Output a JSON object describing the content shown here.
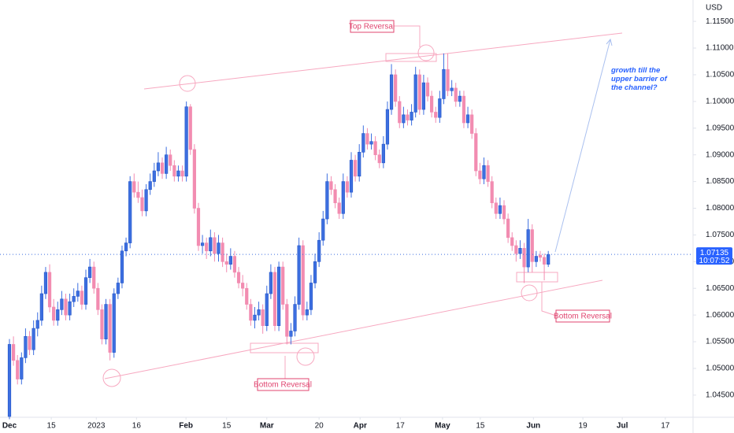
{
  "chart_data": {
    "type": "candlestick",
    "currency": "USD",
    "up_color": "#3d6fe0",
    "down_color": "#f28cb1",
    "last_price": 1.07135,
    "countdown": "10:07:52",
    "annotations": [
      "Top Reversal",
      "Bottom Reversal",
      "Bottom Reversal",
      "growth till the upper barrier of the channel?"
    ],
    "xlim": [
      -2.35,
      170
    ],
    "xticks": [
      {
        "value": 0,
        "label": "Dec"
      },
      {
        "value": 10.4,
        "label": "15"
      },
      {
        "value": 21.6,
        "label": "2023"
      },
      {
        "value": 31.6,
        "label": "16"
      },
      {
        "value": 43.9,
        "label": "Feb"
      },
      {
        "value": 54,
        "label": "15"
      },
      {
        "value": 64,
        "label": "Mar"
      },
      {
        "value": 77,
        "label": "20"
      },
      {
        "value": 87.2,
        "label": "Apr"
      },
      {
        "value": 97.2,
        "label": "17"
      },
      {
        "value": 107.7,
        "label": "May"
      },
      {
        "value": 117.1,
        "label": "15"
      },
      {
        "value": 130.3,
        "label": "Jun"
      },
      {
        "value": 142.6,
        "label": "19"
      },
      {
        "value": 152.4,
        "label": "Jul"
      },
      {
        "value": 163.1,
        "label": "17"
      }
    ],
    "ylim": [
      1.041,
      1.119
    ],
    "yticks": [
      {
        "value": 1.045,
        "label": "1.04500"
      },
      {
        "value": 1.05,
        "label": "1.05000"
      },
      {
        "value": 1.055,
        "label": "1.05500"
      },
      {
        "value": 1.06,
        "label": "1.06000"
      },
      {
        "value": 1.065,
        "label": "1.06500"
      },
      {
        "value": 1.07,
        "label": "1.07000"
      },
      {
        "value": 1.075,
        "label": "1.07500"
      },
      {
        "value": 1.08,
        "label": "1.08000"
      },
      {
        "value": 1.085,
        "label": "1.08500"
      },
      {
        "value": 1.09,
        "label": "1.09000"
      },
      {
        "value": 1.095,
        "label": "1.09500"
      },
      {
        "value": 1.1,
        "label": "1.10000"
      },
      {
        "value": 1.105,
        "label": "1.10500"
      },
      {
        "value": 1.11,
        "label": "1.11000"
      },
      {
        "value": 1.115,
        "label": "1.11500"
      }
    ],
    "candles": [
      [
        1.041,
        1.0555,
        1.0405,
        1.0545
      ],
      [
        1.0545,
        1.056,
        1.0505,
        1.0515
      ],
      [
        1.0515,
        1.0525,
        1.047,
        1.048
      ],
      [
        1.048,
        1.053,
        1.047,
        1.052
      ],
      [
        1.052,
        1.0575,
        1.051,
        1.056
      ],
      [
        1.056,
        1.057,
        1.0525,
        1.0535
      ],
      [
        1.0535,
        1.059,
        1.0525,
        1.0575
      ],
      [
        1.0575,
        1.0605,
        1.056,
        1.059
      ],
      [
        1.059,
        1.0655,
        1.058,
        1.064
      ],
      [
        1.064,
        1.069,
        1.063,
        1.068
      ],
      [
        1.068,
        1.0695,
        1.0605,
        1.0615
      ],
      [
        1.0615,
        1.063,
        1.058,
        1.059
      ],
      [
        1.059,
        1.0625,
        1.058,
        1.061
      ],
      [
        1.061,
        1.0645,
        1.06,
        1.063
      ],
      [
        1.063,
        1.064,
        1.059,
        1.06
      ],
      [
        1.06,
        1.064,
        1.059,
        1.0625
      ],
      [
        1.0625,
        1.065,
        1.0615,
        1.0635
      ],
      [
        1.0635,
        1.066,
        1.0625,
        1.0645
      ],
      [
        1.0645,
        1.0655,
        1.061,
        1.062
      ],
      [
        1.062,
        1.0685,
        1.061,
        1.067
      ],
      [
        1.067,
        1.0705,
        1.066,
        1.069
      ],
      [
        1.069,
        1.07,
        1.064,
        1.065
      ],
      [
        1.065,
        1.066,
        1.06,
        1.061
      ],
      [
        1.061,
        1.062,
        1.0545,
        1.0555
      ],
      [
        1.0555,
        1.063,
        1.0545,
        1.062
      ],
      [
        1.062,
        1.063,
        1.0515,
        1.053
      ],
      [
        1.053,
        1.065,
        1.052,
        1.064
      ],
      [
        1.064,
        1.067,
        1.063,
        1.066
      ],
      [
        1.066,
        1.073,
        1.065,
        1.072
      ],
      [
        1.072,
        1.0745,
        1.071,
        1.0735
      ],
      [
        1.0735,
        1.086,
        1.0725,
        1.085
      ],
      [
        1.085,
        1.0865,
        1.082,
        1.083
      ],
      [
        1.083,
        1.085,
        1.081,
        1.082
      ],
      [
        1.082,
        1.0835,
        1.0785,
        1.0795
      ],
      [
        1.0795,
        1.0845,
        1.0785,
        1.0835
      ],
      [
        1.0835,
        1.0865,
        1.0825,
        1.085
      ],
      [
        1.085,
        1.0885,
        1.084,
        1.087
      ],
      [
        1.087,
        1.0905,
        1.086,
        1.0885
      ],
      [
        1.0885,
        1.0895,
        1.0855,
        1.0865
      ],
      [
        1.0865,
        1.0915,
        1.0855,
        1.09
      ],
      [
        1.09,
        1.091,
        1.087,
        1.088
      ],
      [
        1.088,
        1.089,
        1.085,
        1.086
      ],
      [
        1.086,
        1.088,
        1.085,
        1.087
      ],
      [
        1.087,
        1.088,
        1.085,
        1.086
      ],
      [
        1.086,
        1.1,
        1.085,
        1.099
      ],
      [
        1.099,
        1.0995,
        1.09,
        1.091
      ],
      [
        1.091,
        1.092,
        1.079,
        1.08
      ],
      [
        1.08,
        1.081,
        1.072,
        1.073
      ],
      [
        1.073,
        1.075,
        1.0715,
        1.0735
      ],
      [
        1.0735,
        1.0745,
        1.0705,
        1.072
      ],
      [
        1.072,
        1.076,
        1.071,
        1.0745
      ],
      [
        1.0745,
        1.0755,
        1.07,
        1.0715
      ],
      [
        1.0715,
        1.075,
        1.07,
        1.0735
      ],
      [
        1.0735,
        1.0745,
        1.069,
        1.07
      ],
      [
        1.07,
        1.0715,
        1.068,
        1.0695
      ],
      [
        1.0695,
        1.0725,
        1.0685,
        1.071
      ],
      [
        1.071,
        1.072,
        1.067,
        1.068
      ],
      [
        1.068,
        1.069,
        1.065,
        1.066
      ],
      [
        1.066,
        1.0675,
        1.0635,
        1.065
      ],
      [
        1.065,
        1.066,
        1.061,
        1.062
      ],
      [
        1.062,
        1.063,
        1.058,
        1.059
      ],
      [
        1.059,
        1.0615,
        1.0575,
        1.06
      ],
      [
        1.06,
        1.0625,
        1.059,
        1.061
      ],
      [
        1.061,
        1.062,
        1.0565,
        1.058
      ],
      [
        1.058,
        1.0655,
        1.057,
        1.064
      ],
      [
        1.064,
        1.0695,
        1.063,
        1.068
      ],
      [
        1.068,
        1.069,
        1.057,
        1.058
      ],
      [
        1.058,
        1.07,
        1.057,
        1.069
      ],
      [
        1.069,
        1.07,
        1.061,
        1.062
      ],
      [
        1.062,
        1.063,
        1.0545,
        1.056
      ],
      [
        1.056,
        1.0585,
        1.0545,
        1.057
      ],
      [
        1.057,
        1.0635,
        1.056,
        1.062
      ],
      [
        1.062,
        1.0745,
        1.061,
        1.073
      ],
      [
        1.073,
        1.074,
        1.059,
        1.06
      ],
      [
        1.06,
        1.0625,
        1.059,
        1.061
      ],
      [
        1.061,
        1.0675,
        1.06,
        1.066
      ],
      [
        1.066,
        1.0715,
        1.065,
        1.07
      ],
      [
        1.07,
        1.0755,
        1.069,
        1.074
      ],
      [
        1.074,
        1.0795,
        1.073,
        1.078
      ],
      [
        1.078,
        1.0865,
        1.077,
        1.085
      ],
      [
        1.085,
        1.086,
        1.0825,
        1.0835
      ],
      [
        1.0835,
        1.0845,
        1.08,
        1.081
      ],
      [
        1.081,
        1.082,
        1.078,
        1.079
      ],
      [
        1.079,
        1.0865,
        1.078,
        1.085
      ],
      [
        1.085,
        1.086,
        1.082,
        1.083
      ],
      [
        1.083,
        1.0905,
        1.082,
        1.089
      ],
      [
        1.089,
        1.09,
        1.085,
        1.086
      ],
      [
        1.086,
        1.092,
        1.085,
        1.0905
      ],
      [
        1.0905,
        1.0955,
        1.0895,
        1.094
      ],
      [
        1.094,
        1.095,
        1.091,
        1.092
      ],
      [
        1.092,
        1.094,
        1.091,
        1.0925
      ],
      [
        1.0925,
        1.0935,
        1.089,
        1.09
      ],
      [
        1.09,
        1.091,
        1.0875,
        1.0885
      ],
      [
        1.0885,
        1.0935,
        1.0875,
        1.092
      ],
      [
        1.092,
        1.1,
        1.091,
        1.0985
      ],
      [
        1.0985,
        1.107,
        1.0975,
        1.105
      ],
      [
        1.105,
        1.106,
        1.099,
        1.1
      ],
      [
        1.1,
        1.101,
        1.095,
        1.096
      ],
      [
        1.096,
        1.099,
        1.095,
        1.0975
      ],
      [
        1.0975,
        1.0985,
        1.0955,
        1.0965
      ],
      [
        1.0965,
        1.0995,
        1.0955,
        1.098
      ],
      [
        1.098,
        1.1065,
        1.097,
        1.105
      ],
      [
        1.105,
        1.106,
        1.0975,
        1.0985
      ],
      [
        1.0985,
        1.105,
        1.0975,
        1.1035
      ],
      [
        1.1035,
        1.1045,
        1.1,
        1.101
      ],
      [
        1.101,
        1.102,
        1.097,
        1.098
      ],
      [
        1.098,
        1.099,
        1.096,
        1.097
      ],
      [
        1.097,
        1.102,
        1.096,
        1.1005
      ],
      [
        1.1005,
        1.109,
        1.0995,
        1.106
      ],
      [
        1.106,
        1.109,
        1.101,
        1.102
      ],
      [
        1.102,
        1.104,
        1.101,
        1.1025
      ],
      [
        1.1025,
        1.1035,
        1.099,
        1.1
      ],
      [
        1.1,
        1.102,
        1.099,
        1.101
      ],
      [
        1.101,
        1.102,
        1.095,
        1.096
      ],
      [
        1.096,
        1.099,
        1.095,
        1.0975
      ],
      [
        1.0975,
        1.0985,
        1.093,
        1.094
      ],
      [
        1.094,
        1.095,
        1.086,
        1.087
      ],
      [
        1.087,
        1.0885,
        1.0845,
        1.0855
      ],
      [
        1.0855,
        1.0895,
        1.0845,
        1.088
      ],
      [
        1.088,
        1.089,
        1.084,
        1.085
      ],
      [
        1.085,
        1.086,
        1.08,
        1.081
      ],
      [
        1.081,
        1.082,
        1.078,
        1.079
      ],
      [
        1.079,
        1.082,
        1.078,
        1.0805
      ],
      [
        1.0805,
        1.0815,
        1.077,
        1.078
      ],
      [
        1.078,
        1.079,
        1.0735,
        1.0745
      ],
      [
        1.0745,
        1.0755,
        1.072,
        1.073
      ],
      [
        1.073,
        1.074,
        1.07,
        1.0715
      ],
      [
        1.0715,
        1.074,
        1.0705,
        1.0725
      ],
      [
        1.0725,
        1.0735,
        1.066,
        1.069
      ],
      [
        1.069,
        1.078,
        1.068,
        1.076
      ],
      [
        1.076,
        1.077,
        1.068,
        1.07
      ],
      [
        1.07,
        1.072,
        1.069,
        1.071
      ],
      [
        1.0712,
        1.072,
        1.07,
        1.0708
      ],
      [
        1.0708,
        1.0715,
        1.0665,
        1.0695
      ],
      [
        1.0695,
        1.072,
        1.069,
        1.07135
      ]
    ]
  }
}
